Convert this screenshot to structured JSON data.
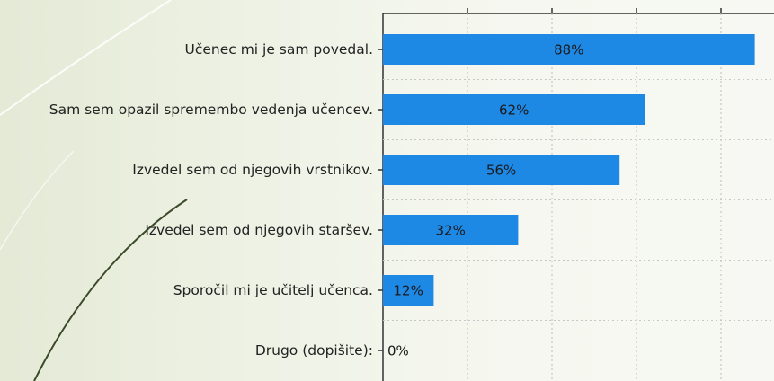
{
  "chart_data": {
    "type": "bar",
    "orientation": "horizontal",
    "categories": [
      "Učenec mi je sam povedal.",
      "Sam sem opazil spremembo vedenja učencev.",
      "Izvedel sem od njegovih vrstnikov.",
      "Izvedel sem od njegovih staršev.",
      "Sporočil mi je učitelj učenca.",
      "Drugo (dopišite):"
    ],
    "values": [
      88,
      62,
      56,
      32,
      12,
      0
    ],
    "value_labels": [
      "88%",
      "62%",
      "56%",
      "32%",
      "12%",
      "0%"
    ],
    "unit": "%",
    "xlim": [
      0,
      93
    ],
    "bar_color": "#1e88e5",
    "grid": true
  }
}
